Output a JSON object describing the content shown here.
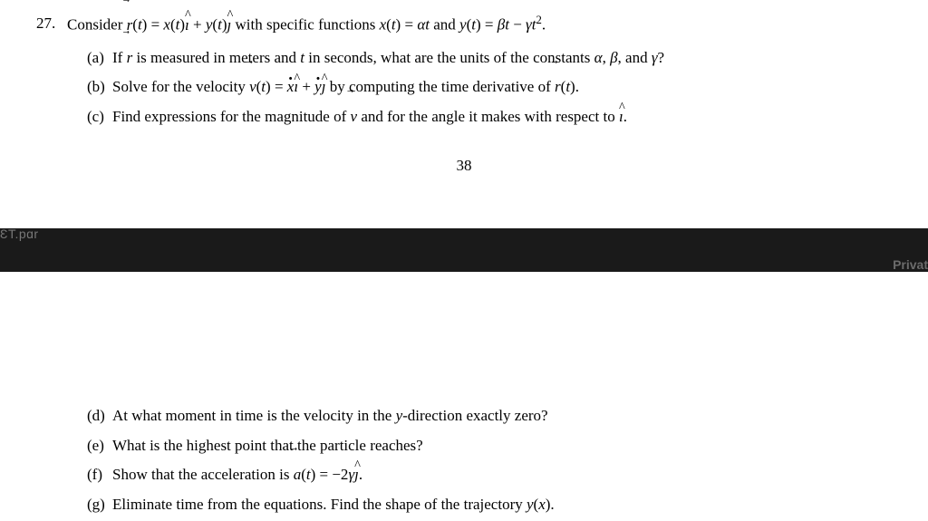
{
  "problem": {
    "number": "27.",
    "intro_pre": "Consider ",
    "r_sym": "r",
    "intro_mid1": "(",
    "t": "t",
    "intro_mid2": ") = ",
    "x": "x",
    "y": "y",
    "ihat": "ı",
    "jhat": "ȷ",
    "plus": " + ",
    "with_text": " with specific functions ",
    "xt_eq": " = ",
    "alpha": "α",
    "and_text": " and ",
    "beta": "β",
    "minus": " − ",
    "gamma": "γ",
    "sq": "2",
    "period": "."
  },
  "parts_top": [
    {
      "label": "(a)",
      "pre": "If ",
      "r": "r",
      "mid1": " is measured in meters and ",
      "t": "t",
      "mid2": " in seconds, what are the units of the constants ",
      "a": "α",
      "c1": ", ",
      "b": "β",
      "c2": ", and ",
      "g": "γ",
      "end": "?"
    },
    {
      "label": "(b)",
      "pre": "Solve for the velocity ",
      "v": "v",
      "mid1": "(",
      "t": "t",
      "mid2": ") = ",
      "xd": "x",
      "ih": "ı",
      "plus": " + ",
      "yd": "y",
      "jh": "ȷ",
      "mid3": " by computing the time derivative of ",
      "r": "r",
      "end": ")."
    },
    {
      "label": "(c)",
      "pre": "Find expressions for the magnitude of ",
      "v": "v",
      "mid": " and for the angle it makes with respect to ",
      "ih": "ı",
      "end": "."
    }
  ],
  "page_number": "38",
  "bar": {
    "left": "ƐT.pɑr",
    "right": "Privat"
  },
  "parts_bottom": [
    {
      "label": "(d)",
      "pre": "At what moment in time is the velocity in the ",
      "y": "y",
      "end": "-direction exactly zero?"
    },
    {
      "label": "(e)",
      "text": "What is the highest point that the particle reaches?"
    },
    {
      "label": "(f)",
      "pre": "Show that the acceleration is ",
      "a": "a",
      "mid1": "(",
      "t": "t",
      "mid2": ") = −2",
      "g": "γ",
      "jh": "ȷ",
      "end": "."
    },
    {
      "label": "(g)",
      "pre": "Eliminate time from the equations.  Find the shape of the trajectory ",
      "y": "y",
      "paren1": "(",
      "x": "x",
      "end": ")."
    }
  ]
}
